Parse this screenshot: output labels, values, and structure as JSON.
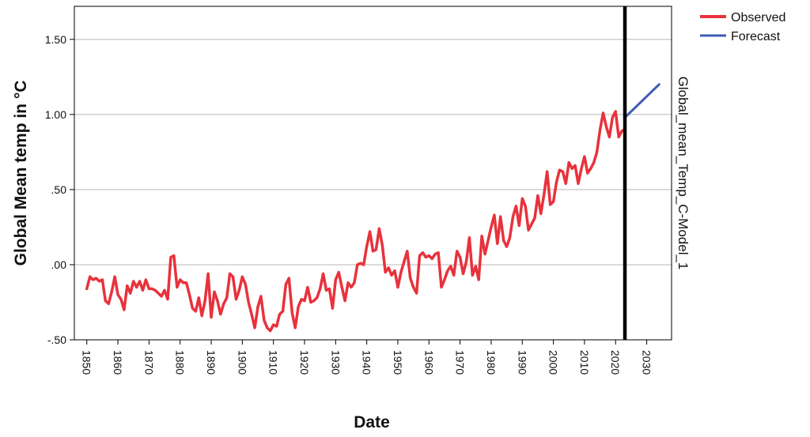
{
  "chart_data": {
    "type": "line",
    "title": "",
    "xlabel": "Date",
    "ylabel": "Global Mean temp in °C",
    "right_label": "Global_mean_Temp_C-Model_1",
    "xlim": [
      1846,
      2038
    ],
    "ylim": [
      -0.5,
      1.72
    ],
    "x_ticks": [
      1850,
      1860,
      1870,
      1880,
      1890,
      1900,
      1910,
      1920,
      1930,
      1940,
      1950,
      1960,
      1970,
      1980,
      1990,
      2000,
      2010,
      2020,
      2030
    ],
    "y_ticks": [
      {
        "value": -0.5,
        "label": "-.50"
      },
      {
        "value": 0.0,
        "label": ".00"
      },
      {
        "value": 0.5,
        "label": ".50"
      },
      {
        "value": 1.0,
        "label": "1.00"
      },
      {
        "value": 1.5,
        "label": "1.50"
      }
    ],
    "grid": "horizontal",
    "legend_position": "top-right",
    "forecast_origin": 2023,
    "series": [
      {
        "name": "Observed",
        "color": "#e8323c",
        "x": [
          1850,
          1851,
          1852,
          1853,
          1854,
          1855,
          1856,
          1857,
          1858,
          1859,
          1860,
          1861,
          1862,
          1863,
          1864,
          1865,
          1866,
          1867,
          1868,
          1869,
          1870,
          1871,
          1872,
          1873,
          1874,
          1875,
          1876,
          1877,
          1878,
          1879,
          1880,
          1881,
          1882,
          1883,
          1884,
          1885,
          1886,
          1887,
          1888,
          1889,
          1890,
          1891,
          1892,
          1893,
          1894,
          1895,
          1896,
          1897,
          1898,
          1899,
          1900,
          1901,
          1902,
          1903,
          1904,
          1905,
          1906,
          1907,
          1908,
          1909,
          1910,
          1911,
          1912,
          1913,
          1914,
          1915,
          1916,
          1917,
          1918,
          1919,
          1920,
          1921,
          1922,
          1923,
          1924,
          1925,
          1926,
          1927,
          1928,
          1929,
          1930,
          1931,
          1932,
          1933,
          1934,
          1935,
          1936,
          1937,
          1938,
          1939,
          1940,
          1941,
          1942,
          1943,
          1944,
          1945,
          1946,
          1947,
          1948,
          1949,
          1950,
          1951,
          1952,
          1953,
          1954,
          1955,
          1956,
          1957,
          1958,
          1959,
          1960,
          1961,
          1962,
          1963,
          1964,
          1965,
          1966,
          1967,
          1968,
          1969,
          1970,
          1971,
          1972,
          1973,
          1974,
          1975,
          1976,
          1977,
          1978,
          1979,
          1980,
          1981,
          1982,
          1983,
          1984,
          1985,
          1986,
          1987,
          1988,
          1989,
          1990,
          1991,
          1992,
          1993,
          1994,
          1995,
          1996,
          1997,
          1998,
          1999,
          2000,
          2001,
          2002,
          2003,
          2004,
          2005,
          2006,
          2007,
          2008,
          2009,
          2010,
          2011,
          2012,
          2013,
          2014,
          2015,
          2016,
          2017,
          2018,
          2019,
          2020,
          2021,
          2022,
          2023
        ],
        "values": [
          -0.16,
          -0.08,
          -0.1,
          -0.09,
          -0.11,
          -0.1,
          -0.24,
          -0.26,
          -0.18,
          -0.08,
          -0.2,
          -0.23,
          -0.3,
          -0.14,
          -0.19,
          -0.11,
          -0.15,
          -0.11,
          -0.17,
          -0.1,
          -0.16,
          -0.16,
          -0.17,
          -0.19,
          -0.21,
          -0.17,
          -0.23,
          0.05,
          0.06,
          -0.15,
          -0.1,
          -0.12,
          -0.12,
          -0.2,
          -0.29,
          -0.31,
          -0.22,
          -0.34,
          -0.24,
          -0.06,
          -0.35,
          -0.18,
          -0.24,
          -0.33,
          -0.26,
          -0.22,
          -0.06,
          -0.08,
          -0.23,
          -0.17,
          -0.08,
          -0.13,
          -0.25,
          -0.33,
          -0.42,
          -0.28,
          -0.21,
          -0.37,
          -0.42,
          -0.44,
          -0.4,
          -0.41,
          -0.33,
          -0.31,
          -0.13,
          -0.09,
          -0.32,
          -0.42,
          -0.28,
          -0.23,
          -0.24,
          -0.15,
          -0.25,
          -0.24,
          -0.22,
          -0.16,
          -0.06,
          -0.17,
          -0.16,
          -0.29,
          -0.1,
          -0.05,
          -0.15,
          -0.24,
          -0.12,
          -0.15,
          -0.12,
          0.0,
          0.01,
          0.0,
          0.12,
          0.22,
          0.09,
          0.1,
          0.24,
          0.13,
          -0.05,
          -0.02,
          -0.07,
          -0.04,
          -0.15,
          -0.05,
          0.02,
          0.09,
          -0.09,
          -0.15,
          -0.19,
          0.06,
          0.08,
          0.05,
          0.06,
          0.04,
          0.07,
          0.08,
          -0.15,
          -0.1,
          -0.04,
          -0.01,
          -0.07,
          0.09,
          0.05,
          -0.06,
          0.02,
          0.18,
          -0.07,
          -0.01,
          -0.1,
          0.19,
          0.07,
          0.16,
          0.25,
          0.33,
          0.14,
          0.32,
          0.16,
          0.12,
          0.18,
          0.32,
          0.39,
          0.26,
          0.44,
          0.39,
          0.23,
          0.27,
          0.31,
          0.46,
          0.34,
          0.47,
          0.62,
          0.4,
          0.42,
          0.55,
          0.63,
          0.62,
          0.54,
          0.68,
          0.64,
          0.66,
          0.54,
          0.64,
          0.72,
          0.61,
          0.64,
          0.68,
          0.75,
          0.9,
          1.01,
          0.92,
          0.85,
          0.98,
          1.02,
          0.85,
          0.89,
          0.9
        ]
      },
      {
        "name": "Forecast",
        "color": "#3f5bb5",
        "x": [
          2023,
          2034
        ],
        "values": [
          0.98,
          1.2
        ]
      }
    ]
  }
}
